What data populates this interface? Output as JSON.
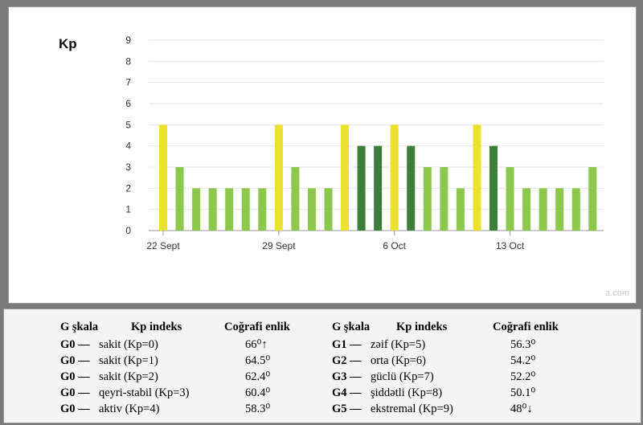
{
  "chart_data": {
    "type": "bar",
    "ylabel": "Kp",
    "ylim": [
      0,
      9
    ],
    "yticks": [
      0,
      1,
      2,
      3,
      4,
      5,
      6,
      7,
      8,
      9
    ],
    "x_tick_labels": [
      {
        "label": "22 Sept",
        "bar_index": 0
      },
      {
        "label": "29 Sept",
        "bar_index": 7
      },
      {
        "label": "6 Oct",
        "bar_index": 14
      },
      {
        "label": "13 Oct",
        "bar_index": 21
      }
    ],
    "values": [
      5,
      3,
      2,
      2,
      2,
      2,
      2,
      5,
      3,
      2,
      2,
      5,
      4,
      4,
      5,
      4,
      3,
      3,
      2,
      5,
      4,
      3,
      2,
      2,
      2,
      2,
      3
    ],
    "colors": {
      "5": "#ece22d",
      "4": "#3d7e3b",
      "3": "#8cc84b",
      "2": "#8cc84b"
    },
    "grid": true,
    "source_watermark": "a.com"
  },
  "table": {
    "left": {
      "headers": [
        "G şkala",
        "Kp indeks",
        "Coğrafi enlik"
      ],
      "rows": [
        {
          "g": "G0 —",
          "kp": "sakit (Kp=0)",
          "lat": "66⁰↑"
        },
        {
          "g": "G0 —",
          "kp": "sakit (Kp=1)",
          "lat": "64.5⁰"
        },
        {
          "g": "G0 —",
          "kp": "sakit (Kp=2)",
          "lat": "62.4⁰"
        },
        {
          "g": "G0 —",
          "kp": "qeyri-stabil (Kp=3)",
          "lat": "60.4⁰"
        },
        {
          "g": "G0 —",
          "kp": "aktiv (Kp=4)",
          "lat": "58.3⁰"
        }
      ]
    },
    "right": {
      "headers": [
        "G şkala",
        "Kp indeks",
        "Coğrafi enlik"
      ],
      "rows": [
        {
          "g": "G1 —",
          "kp": "zəif (Kp=5)",
          "lat": "56.3⁰"
        },
        {
          "g": "G2 —",
          "kp": "orta (Kp=6)",
          "lat": "54.2⁰"
        },
        {
          "g": "G3 —",
          "kp": "güclü (Kp=7)",
          "lat": "52.2⁰"
        },
        {
          "g": "G4 —",
          "kp": "şiddətli (Kp=8)",
          "lat": "50.1⁰"
        },
        {
          "g": "G5 —",
          "kp": "ekstremal (Kp=9)",
          "lat": "48⁰↓"
        }
      ]
    }
  }
}
